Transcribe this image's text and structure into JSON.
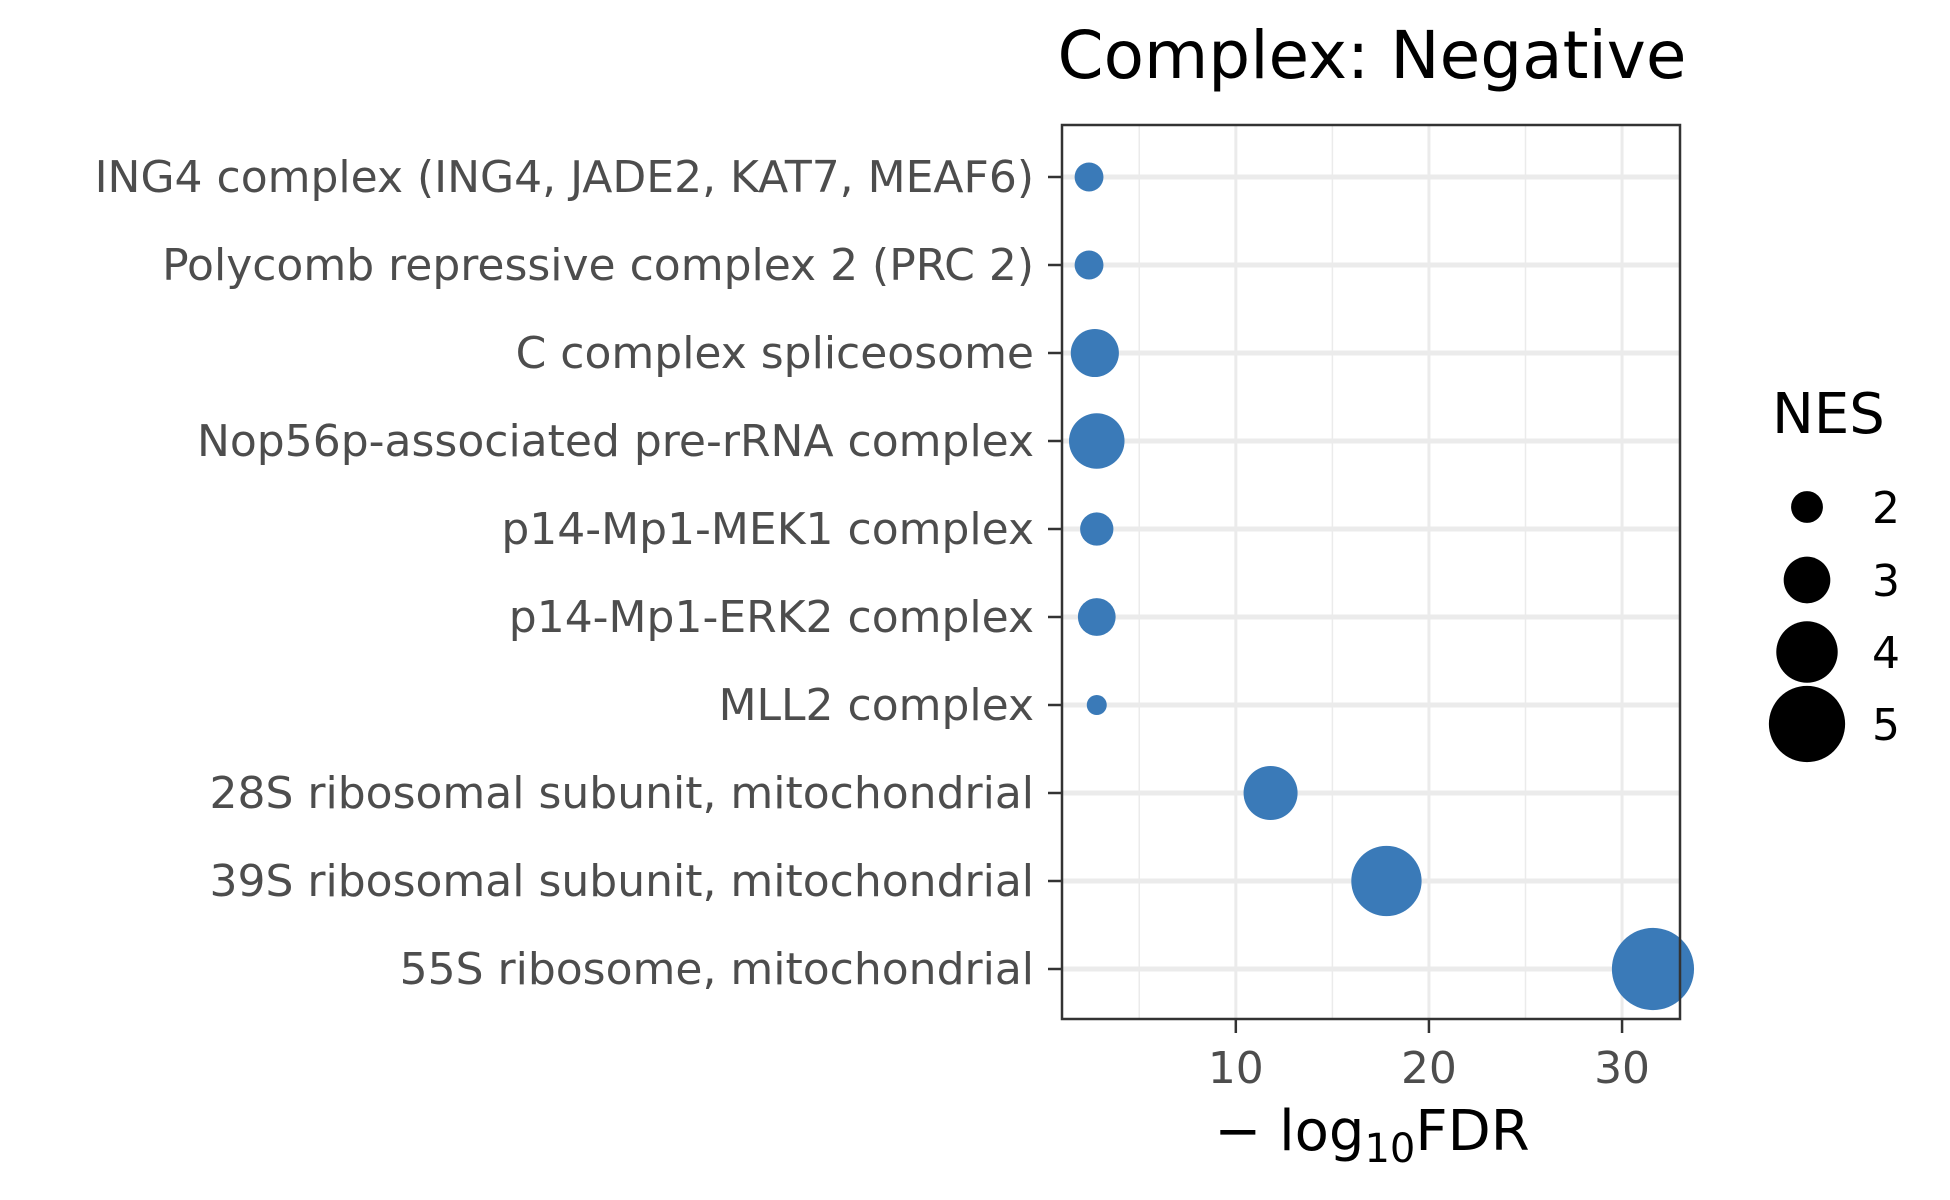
{
  "chart_data": {
    "type": "scatter",
    "title": "Complex: Negative",
    "xlabel": {
      "prefix": "− log",
      "sub": "10",
      "suffix": "FDR"
    },
    "ylabel": "",
    "xlim": [
      1,
      33
    ],
    "x_ticks": [
      10,
      20,
      30
    ],
    "x_minor_ticks": [
      5,
      15,
      25
    ],
    "grid": true,
    "point_color": "#3a7ab8",
    "categories": [
      "ING4 complex (ING4, JADE2, KAT7, MEAF6)",
      "Polycomb repressive complex 2 (PRC 2)",
      "C complex spliceosome",
      "Nop56p-associated pre-rRNA complex",
      "p14-Mp1-MEK1 complex",
      "p14-Mp1-ERK2 complex",
      "MLL2 complex",
      "28S ribosomal subunit, mitochondrial",
      "39S ribosomal subunit, mitochondrial",
      "55S ribosome, mitochondrial"
    ],
    "points": [
      {
        "x": 2.4,
        "nes": 1.8
      },
      {
        "x": 2.4,
        "nes": 1.8
      },
      {
        "x": 2.7,
        "nes": 3.1
      },
      {
        "x": 2.8,
        "nes": 3.6
      },
      {
        "x": 2.8,
        "nes": 2.1
      },
      {
        "x": 2.8,
        "nes": 2.4
      },
      {
        "x": 2.8,
        "nes": 1.2
      },
      {
        "x": 11.8,
        "nes": 3.5
      },
      {
        "x": 17.8,
        "nes": 4.6
      },
      {
        "x": 31.6,
        "nes": 5.4
      }
    ],
    "legend": {
      "title": "NES",
      "placement": "right",
      "items": [
        {
          "label": "2",
          "nes": 2
        },
        {
          "label": "3",
          "nes": 3
        },
        {
          "label": "4",
          "nes": 4
        },
        {
          "label": "5",
          "nes": 5
        }
      ]
    }
  }
}
